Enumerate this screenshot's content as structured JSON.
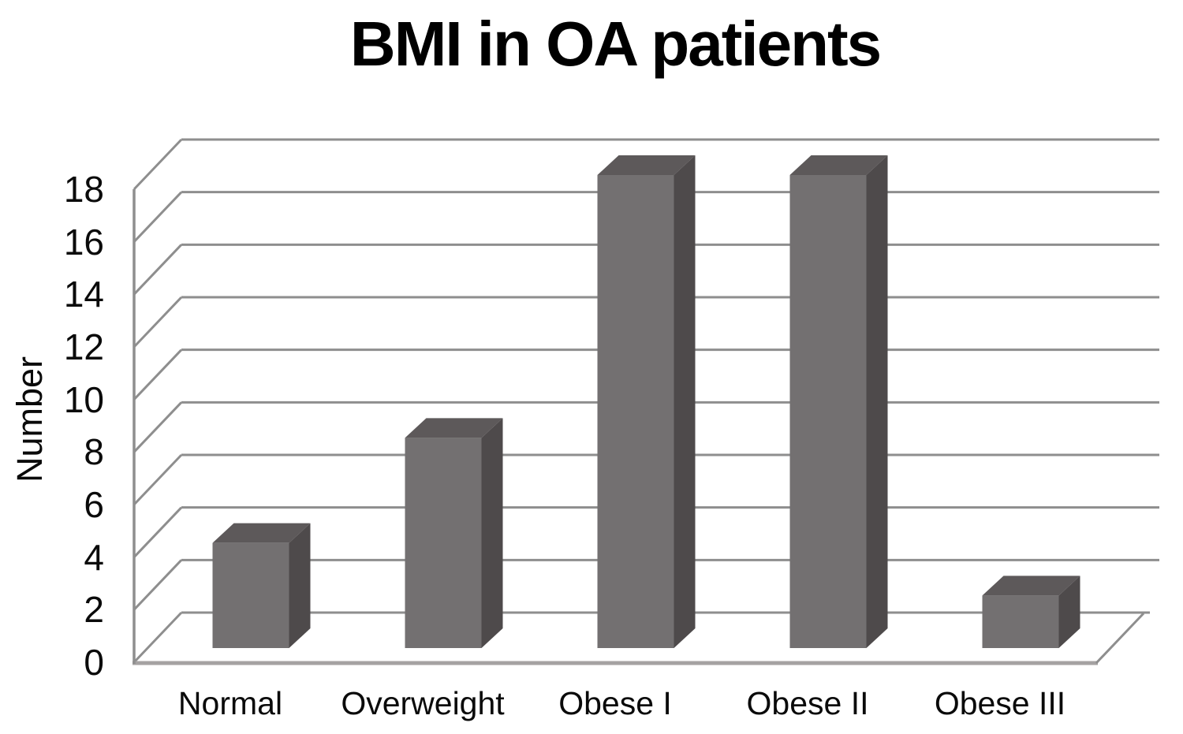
{
  "chart_data": {
    "type": "bar",
    "variant": "3d-column",
    "title": "BMI in OA patients",
    "xlabel": "",
    "ylabel": "Number",
    "categories": [
      "Normal",
      "Overweight",
      "Obese I",
      "Obese II",
      "Obese III"
    ],
    "values": [
      4,
      8,
      18,
      18,
      2
    ],
    "series": [
      {
        "name": "Number",
        "values": [
          4,
          8,
          18,
          18,
          2
        ]
      }
    ],
    "yticks": [
      0,
      2,
      4,
      6,
      8,
      10,
      12,
      14,
      16,
      18
    ],
    "ylim": [
      0,
      18
    ],
    "grid": true,
    "legend": false,
    "background": "#ffffff",
    "colors": {
      "bar_front": "#737071",
      "bar_top": "#5d595a",
      "bar_side": "#4e4a4b",
      "gridline": "#8e8e8e",
      "axis_line": "#8e8e8e",
      "floor_front_edge": "#a5a2a2",
      "text": "#0a0a0a"
    }
  }
}
